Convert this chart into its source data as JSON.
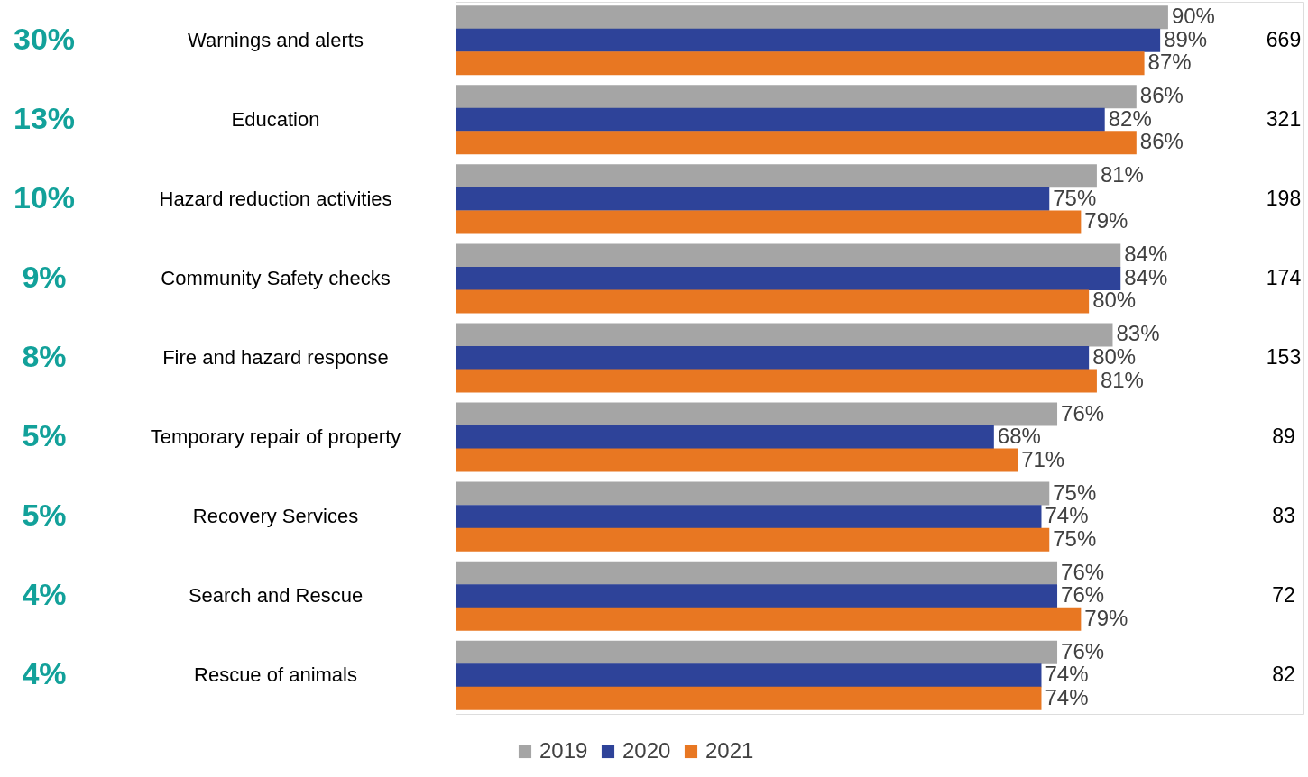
{
  "chart_data": {
    "type": "bar",
    "orientation": "horizontal",
    "legend": "bottom",
    "grid": false,
    "categories": [
      "Warnings and alerts",
      "Education",
      "Hazard reduction activities",
      "Community Safety checks",
      "Fire and hazard response",
      "Temporary repair of property",
      "Recovery Services",
      "Search and Rescue",
      "Rescue of animals"
    ],
    "series": [
      {
        "name": "2019",
        "color": "#a5a5a5",
        "values": [
          90,
          86,
          81,
          84,
          83,
          76,
          75,
          76,
          76
        ],
        "value_labels": [
          "90%",
          "86%",
          "81%",
          "84%",
          "83%",
          "76%",
          "75%",
          "76%",
          "76%"
        ]
      },
      {
        "name": "2020",
        "color": "#2e4399",
        "values": [
          89,
          82,
          75,
          84,
          80,
          68,
          74,
          76,
          74
        ],
        "value_labels": [
          "89%",
          "82%",
          "75%",
          "84%",
          "80%",
          "68%",
          "74%",
          "76%",
          "74%"
        ]
      },
      {
        "name": "2021",
        "color": "#e87722",
        "values": [
          87,
          86,
          79,
          80,
          81,
          71,
          75,
          79,
          74
        ],
        "value_labels": [
          "87%",
          "86%",
          "79%",
          "80%",
          "81%",
          "71%",
          "75%",
          "79%",
          "74%"
        ]
      }
    ],
    "annotations": [
      "30%",
      "13%",
      "10%",
      "9%",
      "8%",
      "5%",
      "5%",
      "4%",
      "4%",
      "669",
      "321",
      "198",
      "174",
      "153",
      "89",
      "83",
      "72",
      "82"
    ]
  }
}
